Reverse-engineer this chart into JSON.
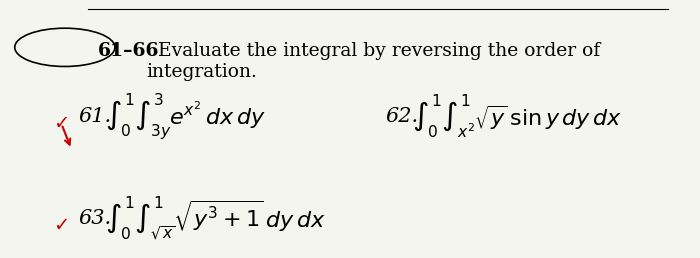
{
  "title_bold": "61–66",
  "title_text": "  Evaluate the integral by reversing the order of\nintegration.",
  "background_color": "#f5f5f0",
  "eq61_label": "61.",
  "eq61_integral": "$\\int_0^1 \\int_{3y}^{3} e^{x^2}\\, dx\\, dy$",
  "eq62_label": "62.",
  "eq62_integral": "$\\int_0^1 \\int_{x^2}^{1} \\sqrt{y}\\, \\sin y\\, dy\\, dx$",
  "eq63_label": "63.",
  "eq63_integral": "$\\int_0^1 \\int_{\\sqrt{x}}^{1} \\sqrt{y^3 + 1}\\, dy\\, dx$",
  "check_color": "#cc0000",
  "title_fontsize": 13.5,
  "eq_fontsize": 15
}
